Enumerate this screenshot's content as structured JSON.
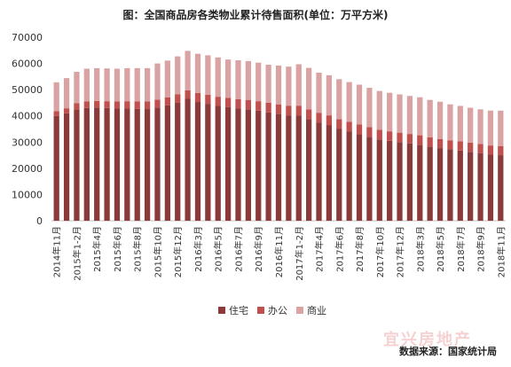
{
  "title": "图：全国商品房各类物业累计待售面积(单位：万平方米)",
  "source": "数据来源：国家统计局",
  "watermark": "宜兴房地产",
  "chart_data": {
    "type": "bar",
    "stacked": true,
    "title": "图：全国商品房各类物业累计待售面积(单位：万平方米)",
    "xlabel": "",
    "ylabel": "",
    "ylim": [
      0,
      70000
    ],
    "yticks": [
      0,
      10000,
      20000,
      30000,
      40000,
      50000,
      60000,
      70000
    ],
    "grid": false,
    "legend_position": "bottom",
    "categories": [
      "2014年11月",
      "2014年12月",
      "2015年1-2月",
      "2015年3月",
      "2015年4月",
      "2015年5月",
      "2015年6月",
      "2015年7月",
      "2015年8月",
      "2015年9月",
      "2015年10月",
      "2015年11月",
      "2015年12月",
      "2016年1-2月",
      "2016年3月",
      "2016年4月",
      "2016年5月",
      "2016年6月",
      "2016年7月",
      "2016年8月",
      "2016年9月",
      "2016年10月",
      "2016年11月",
      "2016年12月",
      "2017年1-2月",
      "2017年3月",
      "2017年4月",
      "2017年5月",
      "2017年6月",
      "2017年7月",
      "2017年8月",
      "2017年9月",
      "2017年10月",
      "2017年11月",
      "2017年12月",
      "2018年1-2月",
      "2018年3月",
      "2018年4月",
      "2018年5月",
      "2018年6月",
      "2018年7月",
      "2018年8月",
      "2018年9月",
      "2018年10月",
      "2018年11月"
    ],
    "visible_tick_labels": [
      "2014年11月",
      "2015年1-2月",
      "2015年4月",
      "2015年6月",
      "2015年8月",
      "2015年10月",
      "2015年12月",
      "2016年3月",
      "2016年5月",
      "2016年7月",
      "2016年9月",
      "2016年11月",
      "2017年1-2月",
      "2017年4月",
      "2017年6月",
      "2017年8月",
      "2017年10月",
      "2017年12月",
      "2018年3月",
      "2018年5月",
      "2018年7月",
      "2018年9月",
      "2018年11月"
    ],
    "series": [
      {
        "name": "住宅",
        "color": "#8b3a3a",
        "values": [
          40000,
          41000,
          42500,
          43000,
          43200,
          43000,
          42800,
          42900,
          42700,
          42600,
          43200,
          44000,
          45000,
          46500,
          45300,
          44600,
          43800,
          43400,
          42800,
          42500,
          42000,
          41300,
          40700,
          40200,
          40200,
          38800,
          37500,
          36500,
          35000,
          34000,
          33000,
          32000,
          31000,
          30500,
          30000,
          29500,
          29000,
          28300,
          27700,
          27200,
          26800,
          26300,
          25800,
          25200,
          25000
        ]
      },
      {
        "name": "办公",
        "color": "#c0504d",
        "values": [
          1800,
          1900,
          2300,
          2500,
          2500,
          2600,
          2700,
          2700,
          2800,
          2900,
          3000,
          3100,
          3200,
          3300,
          3400,
          3500,
          3500,
          3500,
          3600,
          3600,
          3600,
          3700,
          3700,
          3700,
          3700,
          3700,
          3700,
          3700,
          3700,
          3700,
          3700,
          3700,
          3700,
          3600,
          3600,
          3600,
          3600,
          3500,
          3500,
          3500,
          3500,
          3500,
          3500,
          3500,
          3500
        ]
      },
      {
        "name": "商业",
        "color": "#d9a3a3",
        "values": [
          11000,
          11500,
          12000,
          12500,
          12500,
          12500,
          12500,
          12600,
          12700,
          12700,
          13800,
          14000,
          14500,
          15000,
          15000,
          15000,
          15000,
          14600,
          14800,
          14800,
          14700,
          14500,
          14800,
          14900,
          15800,
          15800,
          15300,
          15300,
          15300,
          15200,
          15200,
          15000,
          14800,
          14700,
          14600,
          14500,
          14500,
          14300,
          14200,
          13700,
          13500,
          13300,
          13200,
          13300,
          13500
        ]
      }
    ]
  }
}
